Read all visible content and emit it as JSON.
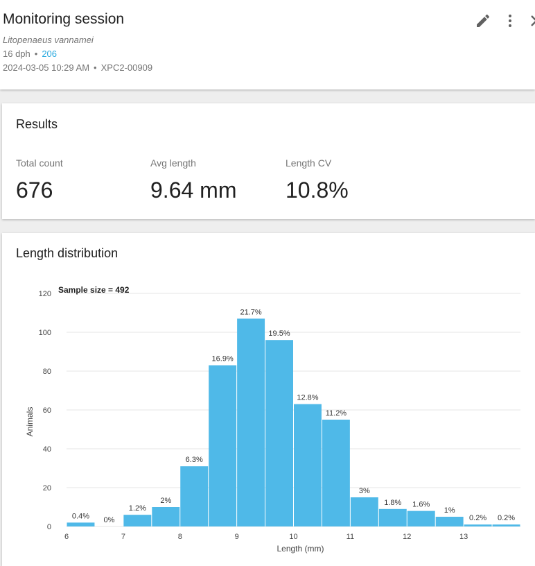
{
  "header": {
    "title": "Monitoring session",
    "species": "Litopenaeus vannamei",
    "age": "16 dph",
    "tank": "206",
    "datetime": "2024-03-05 10:29 AM",
    "device": "XPC2-00909",
    "separator": "•",
    "icons": [
      "edit-icon",
      "more-vert-icon",
      "close-icon"
    ]
  },
  "results": {
    "title": "Results",
    "stats": [
      {
        "label": "Total count",
        "value": "676"
      },
      {
        "label": "Avg length",
        "value": "9.64 mm"
      },
      {
        "label": "Length CV",
        "value": "10.8%"
      }
    ]
  },
  "distribution": {
    "title": "Length distribution"
  },
  "colors": {
    "bar": "#4fb9e8",
    "link": "#29a9df",
    "grid": "#e6e6e6"
  },
  "chart_data": {
    "type": "bar",
    "annotation": "Sample size = 492",
    "xlabel": "Length (mm)",
    "ylabel": "Animals",
    "ylim": [
      0,
      120
    ],
    "yticks": [
      0,
      20,
      40,
      60,
      80,
      100,
      120
    ],
    "xlim": [
      6,
      14
    ],
    "xticks": [
      6,
      7,
      8,
      9,
      10,
      11,
      12,
      13
    ],
    "bin_width": 0.5,
    "bins": [
      {
        "x0": 6.0,
        "value": 2,
        "label": "0.4%"
      },
      {
        "x0": 6.5,
        "value": 0,
        "label": "0%"
      },
      {
        "x0": 7.0,
        "value": 6,
        "label": "1.2%"
      },
      {
        "x0": 7.5,
        "value": 10,
        "label": "2%"
      },
      {
        "x0": 8.0,
        "value": 31,
        "label": "6.3%"
      },
      {
        "x0": 8.5,
        "value": 83,
        "label": "16.9%"
      },
      {
        "x0": 9.0,
        "value": 107,
        "label": "21.7%"
      },
      {
        "x0": 9.5,
        "value": 96,
        "label": "19.5%"
      },
      {
        "x0": 10.0,
        "value": 63,
        "label": "12.8%"
      },
      {
        "x0": 10.5,
        "value": 55,
        "label": "11.2%"
      },
      {
        "x0": 11.0,
        "value": 15,
        "label": "3%"
      },
      {
        "x0": 11.5,
        "value": 9,
        "label": "1.8%"
      },
      {
        "x0": 12.0,
        "value": 8,
        "label": "1.6%"
      },
      {
        "x0": 12.5,
        "value": 5,
        "label": "1%"
      },
      {
        "x0": 13.0,
        "value": 1,
        "label": "0.2%"
      },
      {
        "x0": 13.5,
        "value": 1,
        "label": "0.2%"
      }
    ]
  }
}
